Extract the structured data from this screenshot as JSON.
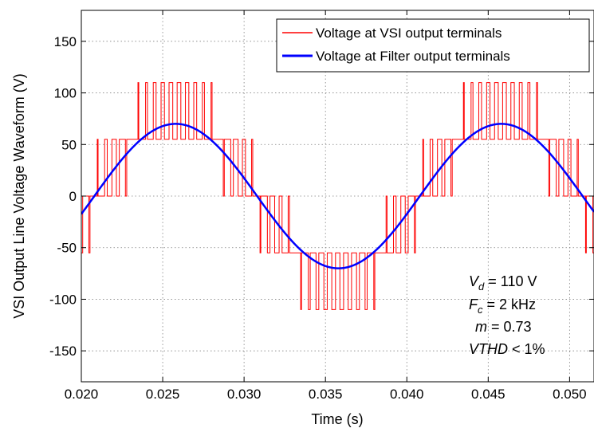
{
  "chart_data": {
    "type": "line",
    "xlabel": "Time (s)",
    "ylabel": "VSI Output Line Voltage Waveform (V)",
    "xlim": [
      0.02,
      0.0515
    ],
    "ylim": [
      -180,
      180
    ],
    "x_ticks": [
      0.02,
      0.025,
      0.03,
      0.035,
      0.04,
      0.045,
      0.05
    ],
    "x_tick_labels": [
      "0.020",
      "0.025",
      "0.030",
      "0.035",
      "0.040",
      "0.045",
      "0.050"
    ],
    "y_ticks": [
      -150,
      -100,
      -50,
      0,
      50,
      100,
      150
    ],
    "y_tick_labels": [
      "-150",
      "-100",
      "-50",
      "0",
      "50",
      "100",
      "150"
    ],
    "grid": true,
    "legend_position": "top-right",
    "series": [
      {
        "name": "Voltage at VSI output terminals",
        "color": "#ff0000",
        "kind": "pwm-multilevel",
        "levels": [
          -110,
          -55,
          0,
          55,
          110
        ],
        "fundamental_frequency_hz": 50,
        "carrier_frequency_hz": 2000,
        "modulation_index": 0.73,
        "dc_voltage": 110
      },
      {
        "name": "Voltage at Filter output terminals",
        "color": "#0000ff",
        "kind": "sine",
        "amplitude": 70,
        "frequency_hz": 50,
        "peak_time_s": 0.0258
      }
    ],
    "annotations": [
      {
        "var": "V",
        "sub": "d",
        "rest": " = 110 V"
      },
      {
        "var": "F",
        "sub": "c",
        "rest": " = 2 kHz"
      },
      {
        "var": "m",
        "sub": "",
        "rest": " = 0.73"
      },
      {
        "var": "VTHD",
        "sub": "",
        "rest": " < 1%"
      }
    ]
  }
}
